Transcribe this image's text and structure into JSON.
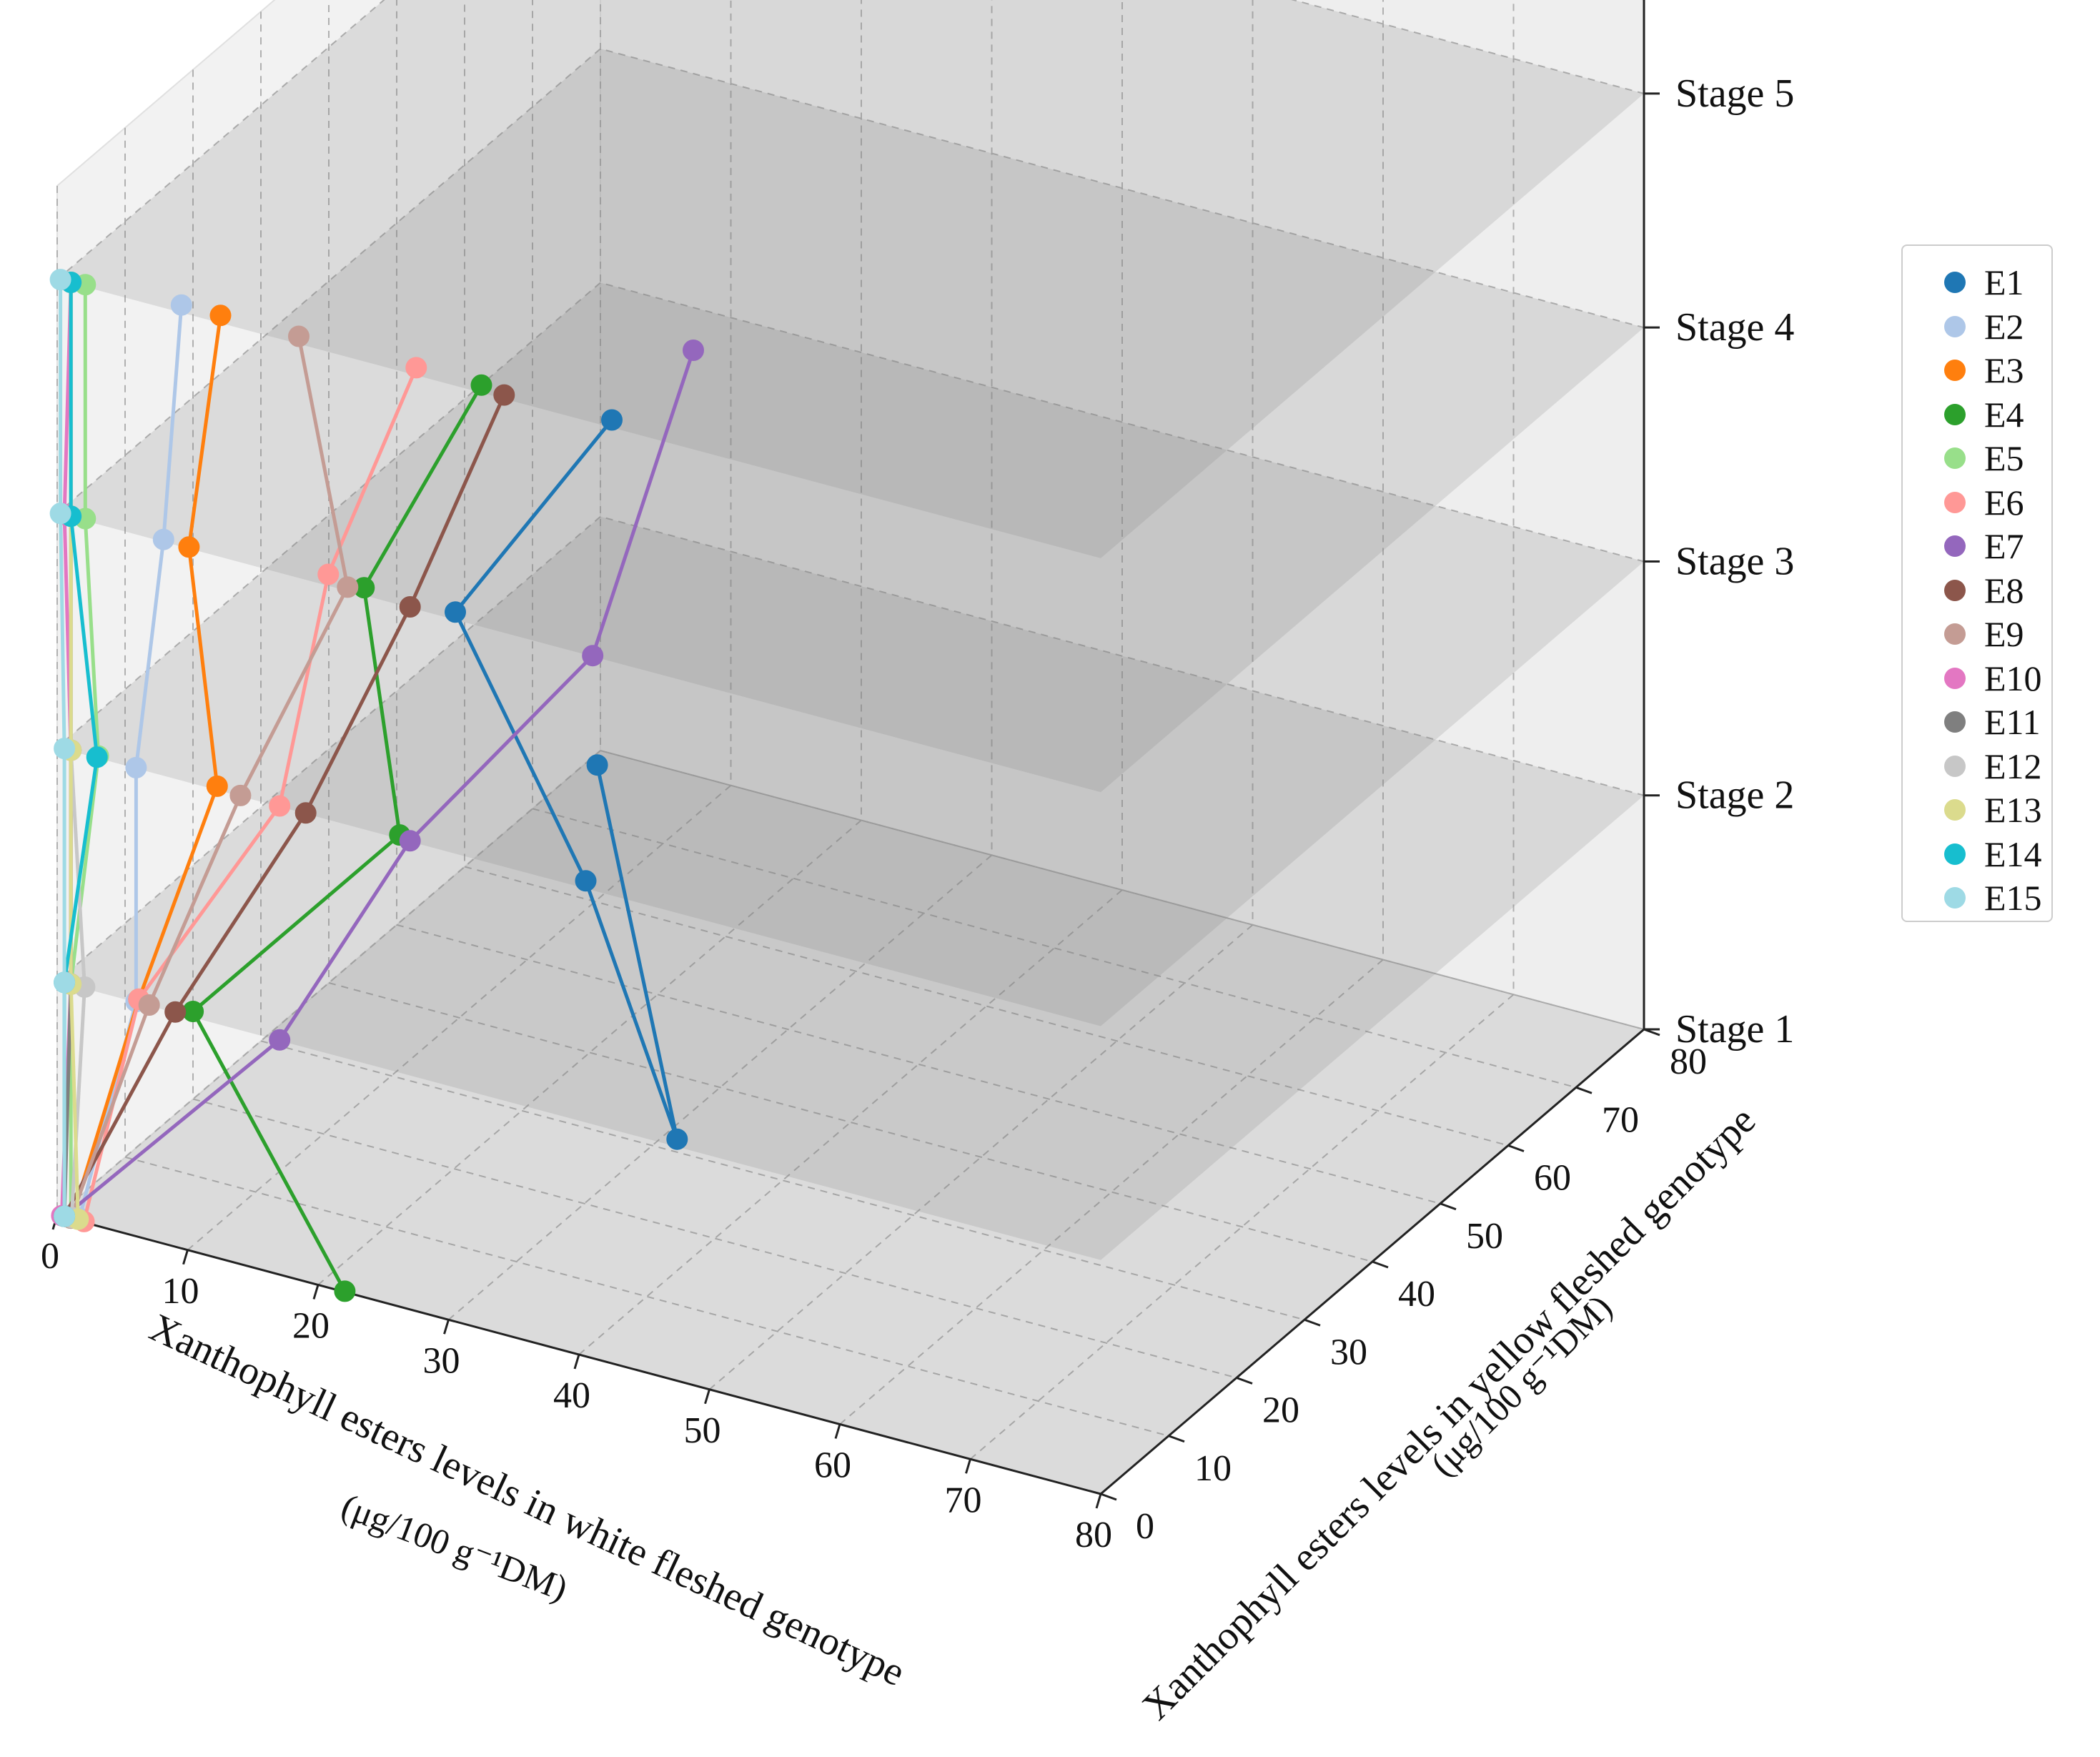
{
  "chart_data": {
    "type": "line3d",
    "xlabel": "Xanthophyll esters levels in white fleshed genotype",
    "xunit": "(μg/100 g⁻¹DM)",
    "ylabel": "Xanthophyll esters levels in yellow fleshed genotype",
    "yunit": "(μg/100 g⁻¹DM)",
    "xlim": [
      0,
      80
    ],
    "ylim": [
      0,
      80
    ],
    "x_ticks": [
      "0",
      "10",
      "20",
      "30",
      "40",
      "50",
      "60",
      "70",
      "80"
    ],
    "y_ticks": [
      "0",
      "10",
      "20",
      "30",
      "40",
      "50",
      "60",
      "70",
      "80"
    ],
    "z_categories": [
      "Stage 1",
      "Stage 2",
      "Stage 3",
      "Stage 4",
      "Stage 5"
    ],
    "series": [
      {
        "name": "E1",
        "color": "#1f77b4",
        "x": [
          0.8,
          47,
          40,
          30,
          42
        ],
        "y": [
          78,
          1,
          1,
          1,
          1
        ]
      },
      {
        "name": "E2",
        "color": "#aec7e8",
        "x": [
          1.5,
          6,
          6,
          8,
          9
        ],
        "y": [
          0.4,
          0.1,
          0.1,
          0.3,
          1
        ]
      },
      {
        "name": "E3",
        "color": "#ff7f0e",
        "x": [
          1,
          6,
          12,
          10,
          12
        ],
        "y": [
          0.3,
          0.5,
          0.5,
          0.2,
          1
        ]
      },
      {
        "name": "E4",
        "color": "#2ca02c",
        "x": [
          22,
          10,
          26,
          23,
          32
        ],
        "y": [
          0.1,
          0.8,
          0.5,
          1,
          1
        ]
      },
      {
        "name": "E5",
        "color": "#98df8a",
        "x": [
          1,
          1,
          3,
          2,
          2
        ],
        "y": [
          0.1,
          0.1,
          0.3,
          0.3,
          0.3
        ]
      },
      {
        "name": "E6",
        "color": "#ff9896",
        "x": [
          2,
          6,
          17,
          20,
          27
        ],
        "y": [
          0.1,
          0.5,
          0.1,
          1.5,
          1
        ]
      },
      {
        "name": "E7",
        "color": "#9467bd",
        "x": [
          0.5,
          17,
          27,
          41,
          42
        ],
        "y": [
          0.1,
          0.1,
          0.1,
          0.1,
          13
        ]
      },
      {
        "name": "E8",
        "color": "#8c564b",
        "x": [
          0.5,
          9,
          19,
          27,
          34
        ],
        "y": [
          0.1,
          0.1,
          0.1,
          0.1,
          0.5
        ]
      },
      {
        "name": "E9",
        "color": "#c49c94",
        "x": [
          1,
          7,
          14,
          22,
          18
        ],
        "y": [
          0.1,
          0.1,
          0.1,
          0.5,
          1
        ]
      },
      {
        "name": "E10",
        "color": "#e377c2",
        "x": [
          0.3,
          1,
          1,
          0.5,
          1
        ],
        "y": [
          0.1,
          0.1,
          0.1,
          0.1,
          0.1
        ]
      },
      {
        "name": "E11",
        "color": "#7f7f7f",
        "x": [
          0.5,
          1,
          1,
          1,
          1
        ],
        "y": [
          0.1,
          0.1,
          0.1,
          0.1,
          0.1
        ]
      },
      {
        "name": "E12",
        "color": "#c7c7c7",
        "x": [
          1,
          2,
          1,
          1,
          1
        ],
        "y": [
          0.2,
          0.2,
          0.1,
          0.1,
          0.1
        ]
      },
      {
        "name": "E13",
        "color": "#dbdb8d",
        "x": [
          1.5,
          1,
          1,
          1,
          1
        ],
        "y": [
          0.2,
          0.1,
          0.1,
          0.1,
          0.1
        ]
      },
      {
        "name": "E14",
        "color": "#17becf",
        "x": [
          0.5,
          0.5,
          3,
          1,
          1
        ],
        "y": [
          0.1,
          0.1,
          0.1,
          0.1,
          0.1
        ]
      },
      {
        "name": "E15",
        "color": "#9edae5",
        "x": [
          0.5,
          0.5,
          0.5,
          0.2,
          0.2
        ],
        "y": [
          0.1,
          0.1,
          0.1,
          0.1,
          0.1
        ]
      }
    ]
  }
}
